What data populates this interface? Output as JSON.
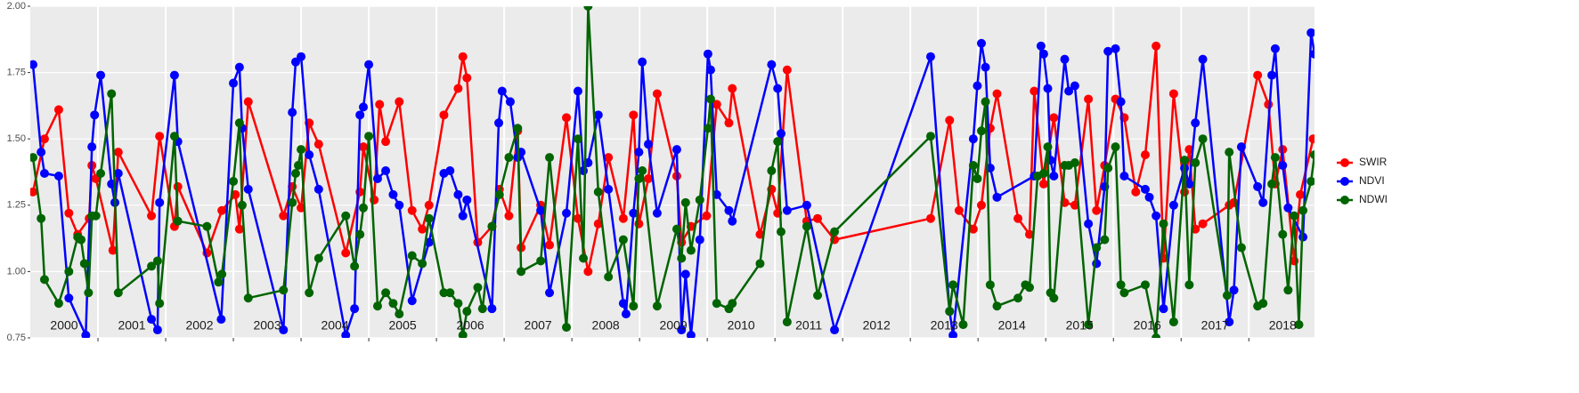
{
  "chart_data": {
    "type": "line",
    "xlim": [
      2000,
      2018.97
    ],
    "ylim": [
      0.75,
      2.0
    ],
    "yticks": [
      0.75,
      {
        "value": 1.0,
        "label": "1.00"
      },
      1.25,
      {
        "value": 1.5,
        "label": "1.50"
      },
      1.75,
      {
        "value": 2.0,
        "label": "2.00"
      }
    ],
    "xticks": [
      {
        "value": 2000.5,
        "label": "2000"
      },
      {
        "value": 2001.5,
        "label": "2001"
      },
      {
        "value": 2002.5,
        "label": "2002"
      },
      {
        "value": 2003.5,
        "label": "2003"
      },
      {
        "value": 2004.5,
        "label": "2004"
      },
      {
        "value": 2005.5,
        "label": "2005"
      },
      {
        "value": 2006.5,
        "label": "2006"
      },
      {
        "value": 2007.5,
        "label": "2007"
      },
      {
        "value": 2008.5,
        "label": "2008"
      },
      {
        "value": 2009.5,
        "label": "2009"
      },
      {
        "value": 2010.5,
        "label": "2010"
      },
      {
        "value": 2011.5,
        "label": "2011"
      },
      {
        "value": 2012.5,
        "label": "2012"
      },
      {
        "value": 2013.5,
        "label": "2013"
      },
      {
        "value": 2014.5,
        "label": "2014"
      },
      {
        "value": 2015.5,
        "label": "2015"
      },
      {
        "value": 2016.5,
        "label": "2016"
      },
      {
        "value": 2017.5,
        "label": "2017"
      },
      {
        "value": 2018.5,
        "label": "2018"
      }
    ],
    "xgrid": [
      2001,
      2002,
      2003,
      2004,
      2005,
      2006,
      2007,
      2008,
      2009,
      2010,
      2011,
      2012,
      2013,
      2014,
      2015,
      2016,
      2017,
      2018
    ],
    "grid": true,
    "legend": "right",
    "series": [
      {
        "name": "SWIR",
        "color": "#ff0000",
        "x": [
          2000.04,
          2000.21,
          2000.42,
          2000.57,
          2000.7,
          2000.87,
          2000.91,
          2000.97,
          2001.22,
          2001.3,
          2001.79,
          2001.91,
          2002.13,
          2002.18,
          2002.61,
          2002.83,
          2003.03,
          2003.09,
          2003.22,
          2003.74,
          2003.87,
          2004.0,
          2004.12,
          2004.26,
          2004.66,
          2004.87,
          2004.92,
          2005.08,
          2005.16,
          2005.25,
          2005.45,
          2005.64,
          2005.79,
          2005.89,
          2006.11,
          2006.32,
          2006.39,
          2006.45,
          2006.61,
          2006.82,
          2006.93,
          2007.07,
          2007.2,
          2007.25,
          2007.54,
          2007.67,
          2007.92,
          2008.09,
          2008.24,
          2008.39,
          2008.54,
          2008.76,
          2008.91,
          2008.99,
          2009.13,
          2009.26,
          2009.55,
          2009.62,
          2009.76,
          2009.99,
          2010.14,
          2010.32,
          2010.37,
          2010.78,
          2010.95,
          2011.04,
          2011.18,
          2011.47,
          2011.63,
          2011.88,
          2013.3,
          2013.58,
          2013.72,
          2013.93,
          2014.05,
          2014.18,
          2014.28,
          2014.59,
          2014.76,
          2014.83,
          2014.97,
          2015.12,
          2015.28,
          2015.43,
          2015.63,
          2015.75,
          2015.87,
          2016.03,
          2016.16,
          2016.33,
          2016.47,
          2016.63,
          2016.74,
          2016.89,
          2017.05,
          2017.12,
          2017.21,
          2017.32,
          2017.71,
          2017.78,
          2018.13,
          2018.29,
          2018.39,
          2018.5,
          2018.67,
          2018.76,
          2018.95
        ],
        "values": [
          1.3,
          1.5,
          1.61,
          1.22,
          1.14,
          1.2,
          1.4,
          1.35,
          1.08,
          1.45,
          1.21,
          1.51,
          1.17,
          1.32,
          1.07,
          1.23,
          1.29,
          1.16,
          1.64,
          1.21,
          1.32,
          1.24,
          1.56,
          1.48,
          1.07,
          1.3,
          1.47,
          1.27,
          1.63,
          1.49,
          1.64,
          1.23,
          1.16,
          1.25,
          1.59,
          1.69,
          1.81,
          1.73,
          1.11,
          1.17,
          1.31,
          1.21,
          1.53,
          1.09,
          1.25,
          1.1,
          1.58,
          1.2,
          1.0,
          1.18,
          1.43,
          1.2,
          1.59,
          1.18,
          1.35,
          1.67,
          1.36,
          1.11,
          1.17,
          1.21,
          1.63,
          1.56,
          1.69,
          1.14,
          1.31,
          1.22,
          1.76,
          1.19,
          1.2,
          1.12,
          1.2,
          1.57,
          1.23,
          1.16,
          1.25,
          1.54,
          1.67,
          1.2,
          1.14,
          1.68,
          1.33,
          1.58,
          1.26,
          1.25,
          1.65,
          1.23,
          1.4,
          1.65,
          1.58,
          1.3,
          1.44,
          1.85,
          1.05,
          1.67,
          1.3,
          1.46,
          1.16,
          1.18,
          1.25,
          1.26,
          1.74,
          1.63,
          1.33,
          1.46,
          1.04,
          1.29,
          1.5
        ]
      },
      {
        "name": "NDVI",
        "color": "#0000ff",
        "x": [
          2000.04,
          2000.16,
          2000.21,
          2000.42,
          2000.57,
          2000.82,
          2000.91,
          2000.95,
          2001.04,
          2001.2,
          2001.25,
          2001.3,
          2001.79,
          2001.88,
          2001.91,
          2002.13,
          2002.18,
          2002.82,
          2003.0,
          2003.09,
          2003.13,
          2003.22,
          2003.74,
          2003.87,
          2003.92,
          2004.0,
          2004.12,
          2004.26,
          2004.66,
          2004.79,
          2004.87,
          2004.92,
          2005.0,
          2005.13,
          2005.25,
          2005.36,
          2005.45,
          2005.64,
          2005.89,
          2006.11,
          2006.2,
          2006.32,
          2006.39,
          2006.45,
          2006.82,
          2006.92,
          2006.97,
          2007.09,
          2007.2,
          2007.25,
          2007.54,
          2007.67,
          2007.92,
          2008.09,
          2008.17,
          2008.24,
          2008.39,
          2008.54,
          2008.76,
          2008.8,
          2008.91,
          2008.99,
          2009.04,
          2009.13,
          2009.26,
          2009.55,
          2009.62,
          2009.68,
          2009.76,
          2009.89,
          2010.01,
          2010.05,
          2010.14,
          2010.32,
          2010.37,
          2010.95,
          2011.04,
          2011.09,
          2011.18,
          2011.47,
          2011.88,
          2013.3,
          2013.58,
          2013.63,
          2013.93,
          2013.99,
          2014.05,
          2014.11,
          2014.18,
          2014.28,
          2014.83,
          2014.93,
          2014.97,
          2015.03,
          2015.07,
          2015.12,
          2015.28,
          2015.34,
          2015.43,
          2015.63,
          2015.75,
          2015.87,
          2015.92,
          2016.03,
          2016.11,
          2016.16,
          2016.47,
          2016.53,
          2016.63,
          2016.74,
          2016.89,
          2017.05,
          2017.12,
          2017.21,
          2017.32,
          2017.71,
          2017.78,
          2017.89,
          2018.13,
          2018.21,
          2018.34,
          2018.39,
          2018.5,
          2018.58,
          2018.8,
          2018.92,
          2018.97
        ],
        "values": [
          1.78,
          1.45,
          1.37,
          1.36,
          0.9,
          0.76,
          1.47,
          1.59,
          1.74,
          1.33,
          1.26,
          1.37,
          0.82,
          0.78,
          1.26,
          1.74,
          1.49,
          0.82,
          1.71,
          1.77,
          1.54,
          1.31,
          0.78,
          1.6,
          1.79,
          1.81,
          1.44,
          1.31,
          0.76,
          0.86,
          1.59,
          1.62,
          1.78,
          1.35,
          1.38,
          1.29,
          1.25,
          0.89,
          1.11,
          1.37,
          1.38,
          1.29,
          1.21,
          1.27,
          0.86,
          1.56,
          1.68,
          1.64,
          1.43,
          1.45,
          1.23,
          0.92,
          1.22,
          1.68,
          1.38,
          1.41,
          1.59,
          1.31,
          0.88,
          0.84,
          1.22,
          1.45,
          1.79,
          1.48,
          1.22,
          1.46,
          0.78,
          0.99,
          0.76,
          1.12,
          1.82,
          1.76,
          1.29,
          1.23,
          1.19,
          1.78,
          1.69,
          1.52,
          1.23,
          1.25,
          0.78,
          1.81,
          0.85,
          0.76,
          1.5,
          1.7,
          1.86,
          1.77,
          1.39,
          1.28,
          1.36,
          1.85,
          1.82,
          1.69,
          1.42,
          1.36,
          1.8,
          1.68,
          1.7,
          1.18,
          1.03,
          1.32,
          1.83,
          1.84,
          1.64,
          1.36,
          1.31,
          1.28,
          1.21,
          0.86,
          1.25,
          1.39,
          1.33,
          1.56,
          1.8,
          0.81,
          0.93,
          1.47,
          1.32,
          1.26,
          1.74,
          1.84,
          1.4,
          1.24,
          1.13,
          1.9,
          1.82
        ]
      },
      {
        "name": "NDWI",
        "color": "#006400",
        "x": [
          2000.04,
          2000.16,
          2000.21,
          2000.42,
          2000.57,
          2000.7,
          2000.75,
          2000.8,
          2000.86,
          2000.91,
          2000.97,
          2001.04,
          2001.2,
          2001.3,
          2001.79,
          2001.88,
          2001.91,
          2002.13,
          2002.18,
          2002.61,
          2002.78,
          2002.83,
          2003.0,
          2003.09,
          2003.13,
          2003.22,
          2003.74,
          2003.87,
          2003.92,
          2003.96,
          2004.0,
          2004.12,
          2004.26,
          2004.66,
          2004.79,
          2004.87,
          2004.92,
          2005.0,
          2005.13,
          2005.25,
          2005.36,
          2005.45,
          2005.64,
          2005.79,
          2005.89,
          2006.11,
          2006.2,
          2006.32,
          2006.39,
          2006.45,
          2006.61,
          2006.68,
          2006.82,
          2006.93,
          2007.07,
          2007.2,
          2007.25,
          2007.54,
          2007.67,
          2007.92,
          2008.09,
          2008.17,
          2008.24,
          2008.39,
          2008.54,
          2008.76,
          2008.91,
          2008.99,
          2009.04,
          2009.26,
          2009.55,
          2009.62,
          2009.68,
          2009.76,
          2009.89,
          2010.01,
          2010.05,
          2010.14,
          2010.32,
          2010.37,
          2010.78,
          2010.95,
          2011.04,
          2011.09,
          2011.18,
          2011.47,
          2011.63,
          2011.88,
          2013.3,
          2013.58,
          2013.63,
          2013.78,
          2013.93,
          2013.99,
          2014.05,
          2014.11,
          2014.18,
          2014.28,
          2014.59,
          2014.7,
          2014.76,
          2014.88,
          2014.97,
          2015.03,
          2015.07,
          2015.12,
          2015.28,
          2015.34,
          2015.43,
          2015.63,
          2015.75,
          2015.87,
          2015.92,
          2016.03,
          2016.11,
          2016.16,
          2016.47,
          2016.63,
          2016.74,
          2016.89,
          2017.05,
          2017.12,
          2017.21,
          2017.32,
          2017.68,
          2017.71,
          2017.89,
          2018.13,
          2018.21,
          2018.34,
          2018.39,
          2018.5,
          2018.58,
          2018.67,
          2018.74,
          2018.8,
          2018.92,
          2018.97
        ],
        "values": [
          1.43,
          1.2,
          0.97,
          0.88,
          1.0,
          1.13,
          1.12,
          1.03,
          0.92,
          1.21,
          1.21,
          1.37,
          1.67,
          0.92,
          1.02,
          1.04,
          0.88,
          1.51,
          1.19,
          1.17,
          0.96,
          0.99,
          1.34,
          1.56,
          1.25,
          0.9,
          0.93,
          1.26,
          1.37,
          1.4,
          1.46,
          0.92,
          1.05,
          1.21,
          1.02,
          1.14,
          1.24,
          1.51,
          0.87,
          0.92,
          0.88,
          0.84,
          1.06,
          1.03,
          1.2,
          0.92,
          0.92,
          0.88,
          0.76,
          0.85,
          0.94,
          0.86,
          1.17,
          1.29,
          1.43,
          1.54,
          1.0,
          1.04,
          1.43,
          0.79,
          1.5,
          1.05,
          2.0,
          1.3,
          0.98,
          1.12,
          0.87,
          1.35,
          1.38,
          0.87,
          1.16,
          1.05,
          1.26,
          1.08,
          1.27,
          1.54,
          1.65,
          0.88,
          0.86,
          0.88,
          1.03,
          1.38,
          1.49,
          1.15,
          0.81,
          1.17,
          0.91,
          1.15,
          1.51,
          0.85,
          0.95,
          0.8,
          1.4,
          1.35,
          1.53,
          1.64,
          0.95,
          0.87,
          0.9,
          0.95,
          0.94,
          1.36,
          1.37,
          1.47,
          0.92,
          0.9,
          1.4,
          1.4,
          1.41,
          0.8,
          1.09,
          1.12,
          1.39,
          1.47,
          0.95,
          0.92,
          0.95,
          0.75,
          1.18,
          0.81,
          1.42,
          0.95,
          1.41,
          1.5,
          0.91,
          1.45,
          1.09,
          0.87,
          0.88,
          1.33,
          1.43,
          1.14,
          0.93,
          1.21,
          0.8,
          1.23,
          1.34,
          1.44
        ]
      }
    ]
  }
}
